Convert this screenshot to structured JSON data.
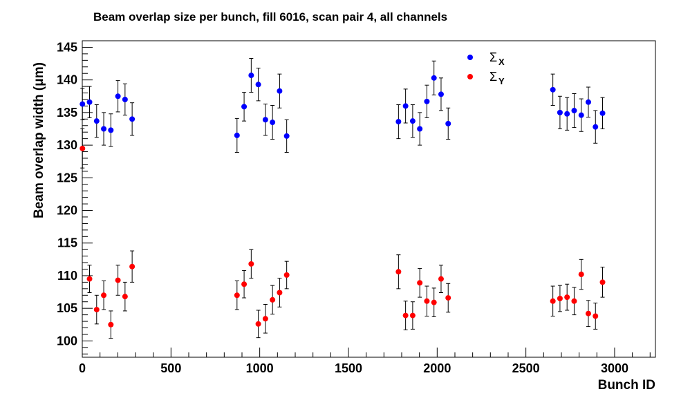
{
  "chart_data": {
    "type": "scatter",
    "title": "Beam overlap size per bunch, fill 6016, scan pair 4, all channels",
    "xlabel": "Bunch ID",
    "ylabel": "Beam overlap width (μm)",
    "xlim": [
      0,
      3230
    ],
    "ylim": [
      97.5,
      146
    ],
    "x_ticks": [
      0,
      500,
      1000,
      1500,
      2000,
      2500,
      3000
    ],
    "y_ticks": [
      100,
      105,
      110,
      115,
      120,
      125,
      130,
      135,
      140,
      145
    ],
    "grid": false,
    "legend_position": "top-right",
    "series": [
      {
        "name": "Σ",
        "subscript": "X",
        "color": "#0000ff",
        "x": [
          1,
          41,
          81,
          121,
          161,
          201,
          241,
          281,
          872,
          912,
          952,
          992,
          1032,
          1072,
          1112,
          1152,
          1782,
          1822,
          1862,
          1902,
          1942,
          1982,
          2022,
          2062,
          2652,
          2692,
          2732,
          2772,
          2812,
          2852,
          2892,
          2932
        ],
        "y": [
          136.3,
          136.6,
          133.7,
          132.5,
          132.3,
          137.5,
          137.0,
          134.0,
          131.5,
          135.9,
          140.7,
          139.3,
          133.9,
          133.5,
          138.3,
          131.4,
          133.6,
          136.0,
          133.7,
          132.5,
          136.7,
          140.3,
          137.8,
          133.3,
          138.5,
          135.0,
          134.8,
          135.3,
          134.6,
          136.6,
          132.8,
          134.9
        ],
        "err": [
          2.4,
          2.4,
          2.5,
          2.5,
          2.5,
          2.4,
          2.4,
          2.5,
          2.6,
          2.2,
          2.6,
          2.5,
          2.4,
          2.6,
          2.6,
          2.5,
          2.6,
          2.6,
          2.5,
          2.5,
          2.5,
          2.6,
          2.5,
          2.4,
          2.4,
          2.5,
          2.5,
          2.6,
          2.5,
          2.3,
          2.5,
          2.4
        ]
      },
      {
        "name": "Σ",
        "subscript": "Y",
        "color": "#ff0000",
        "x": [
          1,
          41,
          81,
          121,
          161,
          201,
          241,
          281,
          872,
          912,
          952,
          992,
          1032,
          1072,
          1112,
          1152,
          1782,
          1822,
          1862,
          1902,
          1942,
          1982,
          2022,
          2062,
          2652,
          2692,
          2732,
          2772,
          2812,
          2852,
          2892,
          2932
        ],
        "y": [
          129.5,
          109.5,
          104.8,
          107.0,
          102.5,
          109.3,
          106.8,
          111.4,
          107.0,
          108.7,
          111.8,
          102.6,
          103.4,
          106.3,
          107.4,
          110.1,
          110.6,
          103.9,
          103.9,
          108.9,
          106.1,
          105.9,
          109.5,
          106.6,
          106.1,
          106.5,
          106.7,
          106.1,
          110.2,
          104.2,
          103.8,
          109.0
        ],
        "err": [
          3.0,
          2.1,
          2.2,
          2.2,
          2.1,
          2.3,
          2.2,
          2.4,
          2.2,
          2.1,
          2.2,
          2.1,
          2.2,
          2.2,
          2.2,
          2.1,
          2.6,
          2.2,
          2.1,
          2.2,
          2.3,
          2.2,
          2.1,
          2.2,
          2.3,
          2.0,
          2.0,
          2.1,
          2.3,
          2.0,
          2.0,
          2.3
        ]
      }
    ]
  }
}
